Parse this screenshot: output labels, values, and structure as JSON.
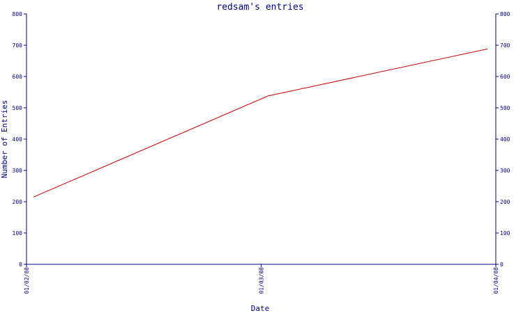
{
  "chart_data": {
    "type": "line",
    "title": "redsam's entries",
    "xlabel": "Date",
    "ylabel": "Number of Entries",
    "x": [
      "01/02/08",
      "01/03/08",
      "01/04/08"
    ],
    "series": [
      {
        "values": [
          215,
          538,
          688
        ]
      }
    ],
    "x_points": [
      {
        "date": "01/02/08",
        "value": 215
      },
      {
        "date": "01/03/08",
        "value": 538
      },
      {
        "date": "01/04/08",
        "value": 688
      }
    ],
    "ylim": [
      0,
      800
    ],
    "yticks": [
      0,
      100,
      200,
      300,
      400,
      500,
      600,
      700,
      800
    ],
    "xticks": [
      "01/02/08",
      "01/03/08",
      "01/04/08"
    ],
    "grid": false,
    "colors": {
      "axis": "#000080",
      "text": "#000080",
      "line": "#cc0000",
      "background": "#ffffff"
    }
  }
}
